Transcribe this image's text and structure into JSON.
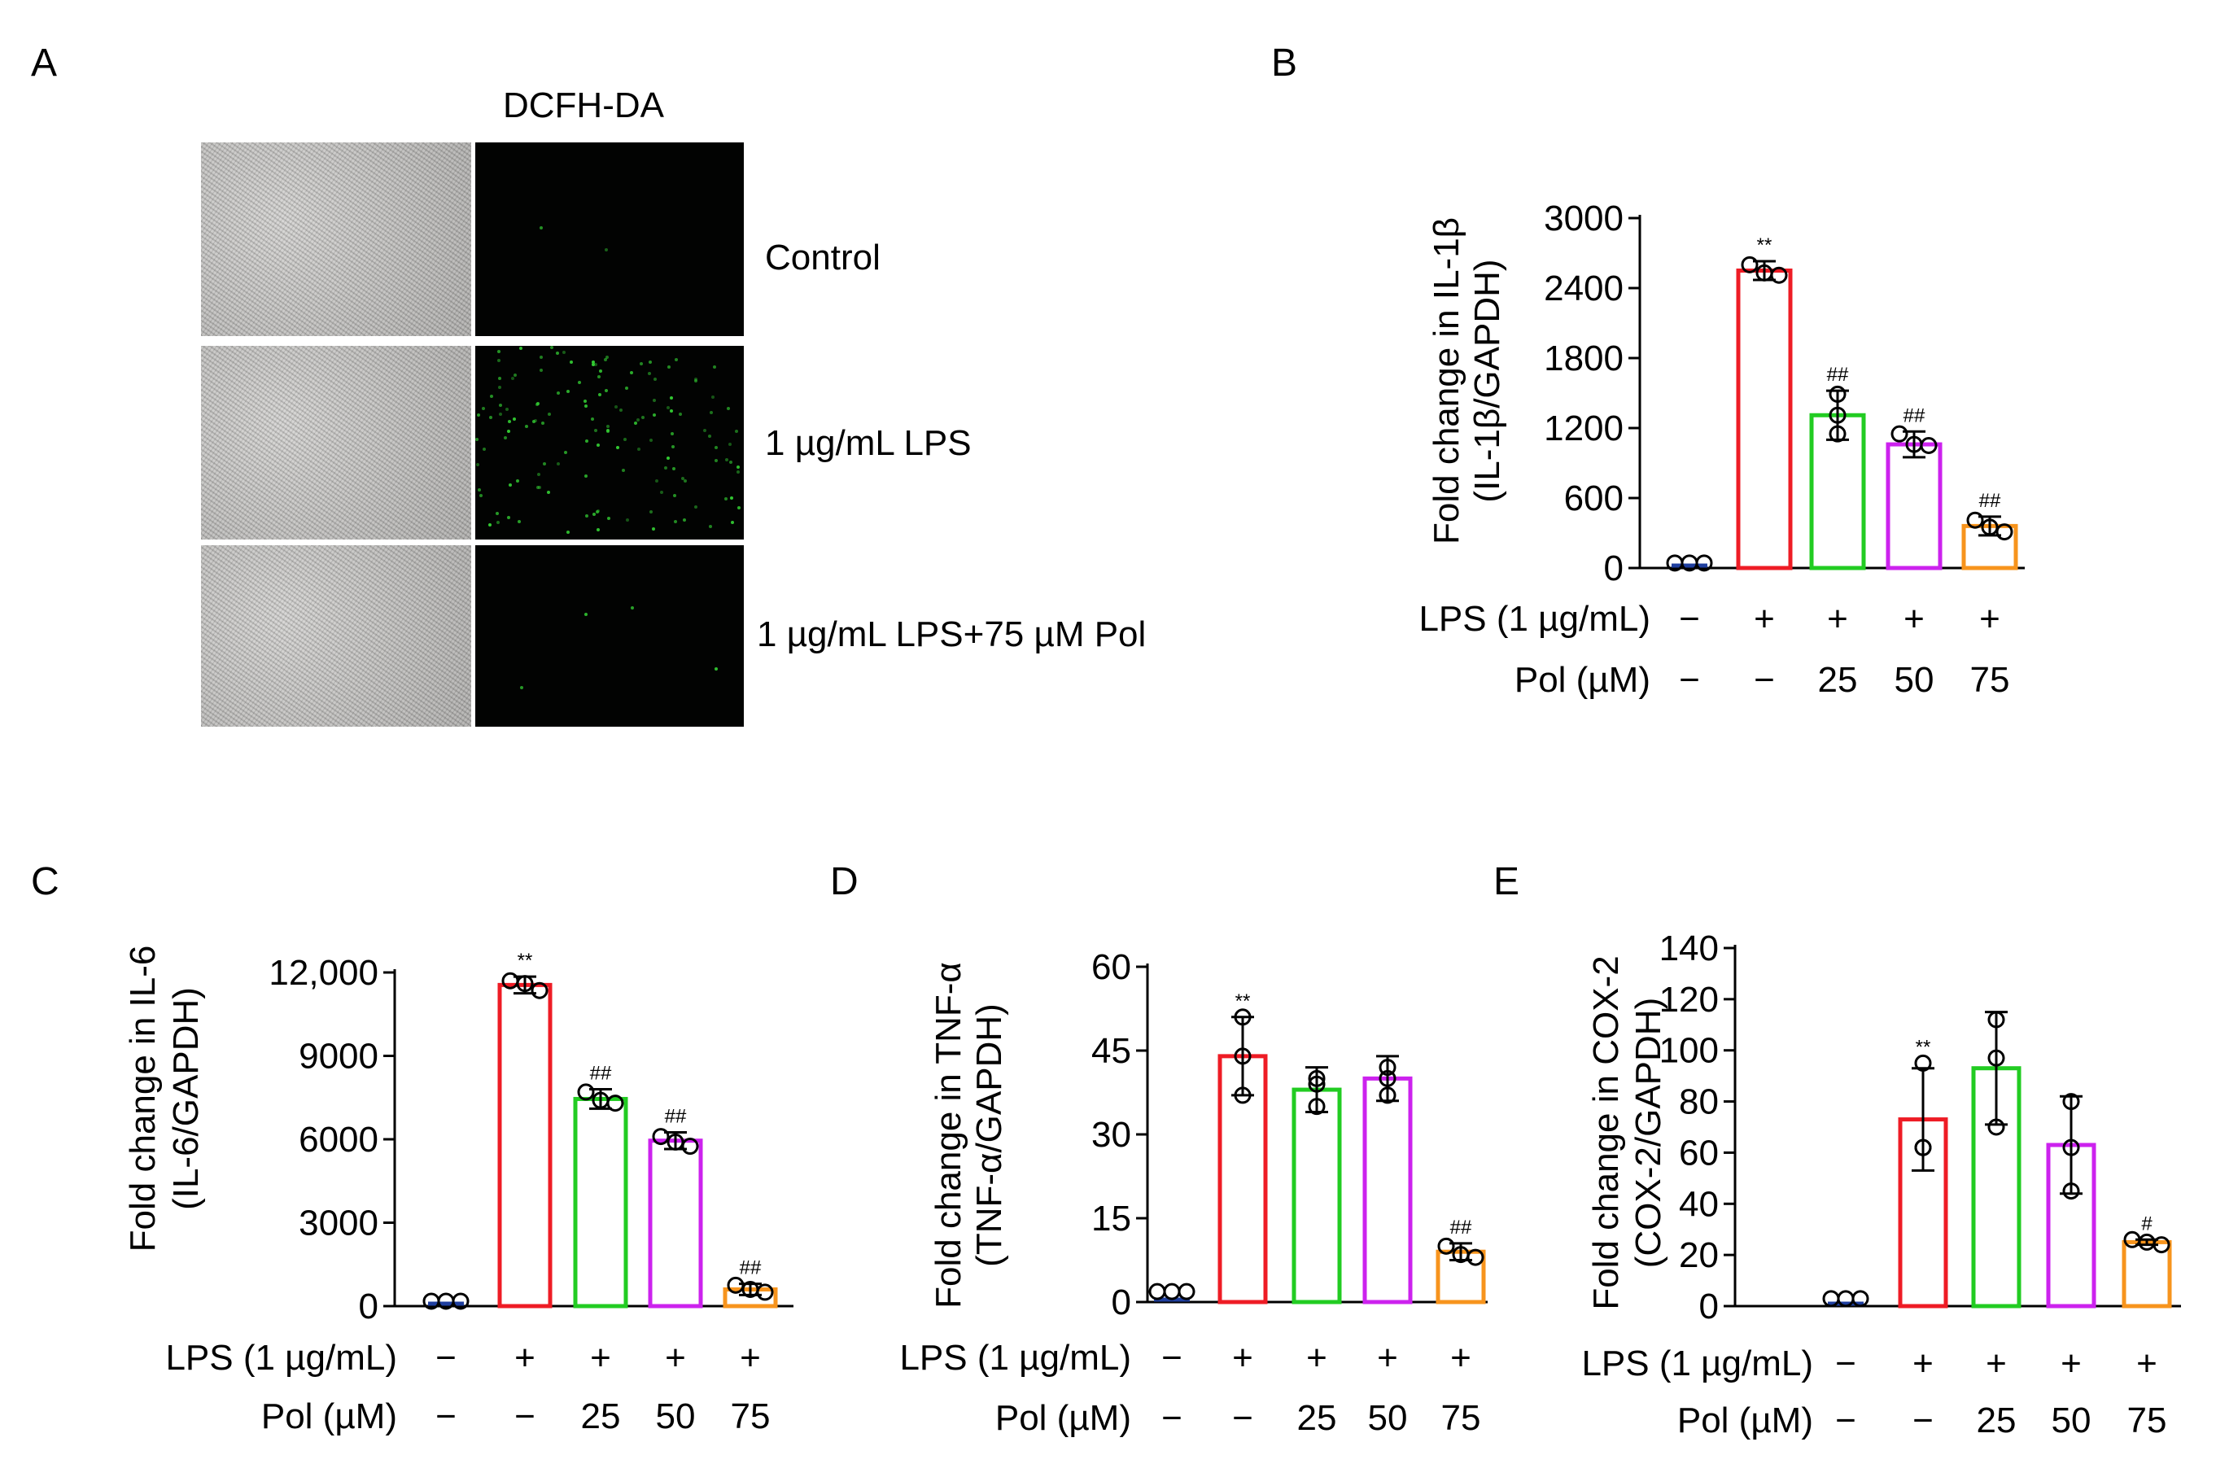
{
  "panels": {
    "A": {
      "letter": "A",
      "column_header": "DCFH-DA",
      "rows": [
        {
          "label": "Control",
          "green_dots": 2
        },
        {
          "label": "1 µg/mL LPS",
          "green_dots": 140
        },
        {
          "label": "1 µg/mL LPS+75 µM Pol",
          "green_dots": 4
        }
      ]
    },
    "B": {
      "letter": "B"
    },
    "C": {
      "letter": "C"
    },
    "D": {
      "letter": "D"
    },
    "E": {
      "letter": "E"
    }
  },
  "condition_table": {
    "lps_label": "LPS (1 µg/mL)",
    "pol_label": "Pol (µM)",
    "lps_values": [
      "−",
      "+",
      "+",
      "+",
      "+"
    ],
    "pol_values": [
      "−",
      "−",
      "25",
      "50",
      "75"
    ]
  },
  "bar_colors": [
    "#1f3f9f",
    "#ee1c25",
    "#22cc22",
    "#cc22ee",
    "#f7941d"
  ],
  "chart_data": [
    {
      "panel": "B",
      "type": "bar",
      "ylabel": "Fold change in IL-1β",
      "ylabel2": "(IL-1β/GAPDH)",
      "ylim": [
        0,
        3000
      ],
      "yticks": [
        0,
        600,
        1200,
        1800,
        2400,
        3000
      ],
      "ytick_labels": [
        "0",
        "600",
        "1200",
        "1800",
        "2400",
        "3000"
      ],
      "categories": [
        "Control",
        "LPS",
        "LPS+25 Pol",
        "LPS+50 Pol",
        "LPS+75 Pol"
      ],
      "values": [
        1,
        2550,
        1310,
        1060,
        360
      ],
      "errors": [
        0,
        80,
        210,
        110,
        80
      ],
      "points": [
        [
          1,
          1,
          1
        ],
        [
          2600,
          2530,
          2510
        ],
        [
          1490,
          1310,
          1150
        ],
        [
          1150,
          1060,
          1050
        ],
        [
          410,
          350,
          310
        ]
      ],
      "annotations": [
        "",
        "**",
        "##",
        "##",
        "##"
      ]
    },
    {
      "panel": "C",
      "type": "bar",
      "ylabel": "Fold change in IL-6",
      "ylabel2": "(IL-6/GAPDH)",
      "ylim": [
        0,
        12000
      ],
      "yticks": [
        0,
        3000,
        6000,
        9000,
        12000
      ],
      "ytick_labels": [
        "0",
        "3000",
        "6000",
        "9000",
        "12,000"
      ],
      "categories": [
        "Control",
        "LPS",
        "LPS+25 Pol",
        "LPS+50 Pol",
        "LPS+75 Pol"
      ],
      "values": [
        1,
        11550,
        7450,
        5950,
        600
      ],
      "errors": [
        0,
        300,
        350,
        300,
        200
      ],
      "points": [
        [
          1,
          1,
          1
        ],
        [
          11700,
          11600,
          11350
        ],
        [
          7700,
          7400,
          7300
        ],
        [
          6100,
          5900,
          5750
        ],
        [
          750,
          600,
          500
        ]
      ],
      "annotations": [
        "",
        "**",
        "##",
        "##",
        "##"
      ]
    },
    {
      "panel": "D",
      "type": "bar",
      "ylabel": "Fold change in TNF-α",
      "ylabel2": "(TNF-α/GAPDH)",
      "ylim": [
        0,
        60
      ],
      "yticks": [
        0,
        15,
        30,
        45,
        60
      ],
      "ytick_labels": [
        "0",
        "15",
        "30",
        "45",
        "60"
      ],
      "categories": [
        "Control",
        "LPS",
        "LPS+25 Pol",
        "LPS+50 Pol",
        "LPS+75 Pol"
      ],
      "values": [
        1,
        44,
        38,
        40,
        9
      ],
      "errors": [
        0,
        7,
        4,
        4,
        1.5
      ],
      "points": [
        [
          1,
          1,
          1
        ],
        [
          51,
          44,
          37
        ],
        [
          40,
          39,
          35
        ],
        [
          42,
          40,
          37
        ],
        [
          10,
          8.5,
          8
        ]
      ],
      "annotations": [
        "",
        "**",
        "",
        "",
        "##"
      ]
    },
    {
      "panel": "E",
      "type": "bar",
      "ylabel": "Fold change in COX-2",
      "ylabel2": "(COX-2/GAPDH)",
      "ylim": [
        0,
        140
      ],
      "yticks": [
        0,
        20,
        40,
        60,
        80,
        100,
        120,
        140
      ],
      "ytick_labels": [
        "0",
        "20",
        "40",
        "60",
        "80",
        "100",
        "120",
        "140"
      ],
      "categories": [
        "Control",
        "LPS",
        "LPS+25 Pol",
        "LPS+50 Pol",
        "LPS+75 Pol"
      ],
      "values": [
        1,
        73,
        93,
        63,
        25
      ],
      "errors": [
        0,
        20,
        22,
        19,
        1
      ],
      "points": [
        [
          1,
          1,
          1
        ],
        [
          95,
          62,
          62
        ],
        [
          112,
          97,
          70
        ],
        [
          80,
          62,
          45
        ],
        [
          26,
          25,
          24
        ]
      ],
      "annotations": [
        "",
        "**",
        "",
        "",
        "#"
      ]
    }
  ]
}
